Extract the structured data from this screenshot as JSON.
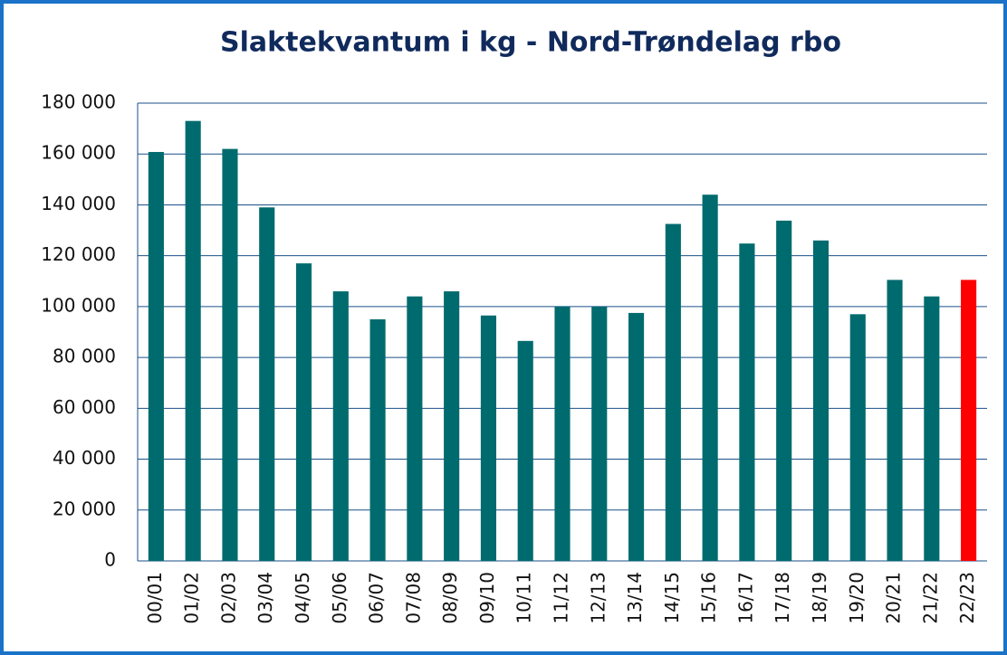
{
  "chart_data": {
    "type": "bar",
    "title": "Slaktekvantum i kg - Nord-Trøndelag rbo",
    "categories": [
      "00/01",
      "01/02",
      "02/03",
      "03/04",
      "04/05",
      "05/06",
      "06/07",
      "07/08",
      "08/09",
      "09/10",
      "10/11",
      "11/12",
      "12/13",
      "13/14",
      "14/15",
      "15/16",
      "16/17",
      "17/18",
      "18/19",
      "19/20",
      "20/21",
      "21/22",
      "22/23"
    ],
    "values": [
      160800,
      173000,
      162000,
      139000,
      117000,
      106000,
      95000,
      104000,
      106000,
      96500,
      86500,
      100000,
      100000,
      97500,
      132500,
      144000,
      124800,
      133800,
      126000,
      97000,
      110500,
      104000,
      110500
    ],
    "colors": [
      "#006b6e",
      "#006b6e",
      "#006b6e",
      "#006b6e",
      "#006b6e",
      "#006b6e",
      "#006b6e",
      "#006b6e",
      "#006b6e",
      "#006b6e",
      "#006b6e",
      "#006b6e",
      "#006b6e",
      "#006b6e",
      "#006b6e",
      "#006b6e",
      "#006b6e",
      "#006b6e",
      "#006b6e",
      "#006b6e",
      "#006b6e",
      "#006b6e",
      "#ff0000"
    ],
    "ylim": [
      0,
      180000
    ],
    "yticks": [
      {
        "value": 0,
        "label": "0"
      },
      {
        "value": 20000,
        "label": "20 000"
      },
      {
        "value": 40000,
        "label": "40 000"
      },
      {
        "value": 60000,
        "label": "60 000"
      },
      {
        "value": 80000,
        "label": "80 000"
      },
      {
        "value": 100000,
        "label": "100 000"
      },
      {
        "value": 120000,
        "label": "120 000"
      },
      {
        "value": 140000,
        "label": "140 000"
      },
      {
        "value": 160000,
        "label": "160 000"
      },
      {
        "value": 180000,
        "label": "180 000"
      }
    ],
    "grid": true
  }
}
